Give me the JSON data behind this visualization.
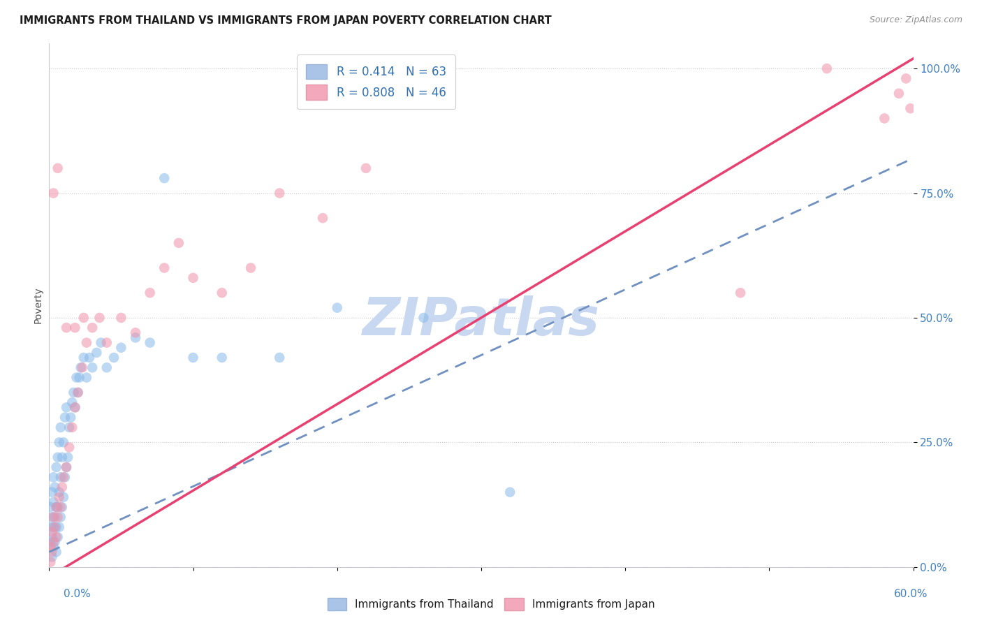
{
  "title": "IMMIGRANTS FROM THAILAND VS IMMIGRANTS FROM JAPAN POVERTY CORRELATION CHART",
  "source": "Source: ZipAtlas.com",
  "ylabel": "Poverty",
  "ytick_labels": [
    "0.0%",
    "25.0%",
    "50.0%",
    "75.0%",
    "100.0%"
  ],
  "ytick_values": [
    0.0,
    0.25,
    0.5,
    0.75,
    1.0
  ],
  "legend_label1": "Immigrants from Thailand",
  "legend_label2": "Immigrants from Japan",
  "thailand_color": "#88b8e8",
  "japan_color": "#f090a8",
  "watermark": "ZIPatlas",
  "watermark_color": "#c8d8f0",
  "xlim": [
    0.0,
    0.6
  ],
  "ylim": [
    0.0,
    1.05
  ],
  "trendline_japan_x0": 0.0,
  "trendline_japan_y0": -0.02,
  "trendline_japan_x1": 0.6,
  "trendline_japan_y1": 1.02,
  "trendline_thailand_x0": 0.0,
  "trendline_thailand_y0": 0.03,
  "trendline_thailand_x1": 0.6,
  "trendline_thailand_y1": 0.82,
  "thailand_x": [
    0.001,
    0.001,
    0.001,
    0.002,
    0.002,
    0.002,
    0.002,
    0.003,
    0.003,
    0.003,
    0.003,
    0.004,
    0.004,
    0.004,
    0.005,
    0.005,
    0.005,
    0.005,
    0.006,
    0.006,
    0.006,
    0.007,
    0.007,
    0.007,
    0.008,
    0.008,
    0.008,
    0.009,
    0.009,
    0.01,
    0.01,
    0.011,
    0.011,
    0.012,
    0.012,
    0.013,
    0.014,
    0.015,
    0.016,
    0.017,
    0.018,
    0.019,
    0.02,
    0.021,
    0.022,
    0.024,
    0.026,
    0.028,
    0.03,
    0.033,
    0.036,
    0.04,
    0.045,
    0.05,
    0.06,
    0.07,
    0.08,
    0.1,
    0.12,
    0.16,
    0.2,
    0.26,
    0.32
  ],
  "thailand_y": [
    0.05,
    0.08,
    0.12,
    0.02,
    0.06,
    0.1,
    0.15,
    0.04,
    0.08,
    0.13,
    0.18,
    0.05,
    0.1,
    0.16,
    0.03,
    0.08,
    0.12,
    0.2,
    0.06,
    0.12,
    0.22,
    0.08,
    0.15,
    0.25,
    0.1,
    0.18,
    0.28,
    0.12,
    0.22,
    0.14,
    0.25,
    0.18,
    0.3,
    0.2,
    0.32,
    0.22,
    0.28,
    0.3,
    0.33,
    0.35,
    0.32,
    0.38,
    0.35,
    0.38,
    0.4,
    0.42,
    0.38,
    0.42,
    0.4,
    0.43,
    0.45,
    0.4,
    0.42,
    0.44,
    0.46,
    0.45,
    0.78,
    0.42,
    0.42,
    0.42,
    0.52,
    0.5,
    0.15
  ],
  "japan_x": [
    0.001,
    0.001,
    0.002,
    0.002,
    0.003,
    0.003,
    0.004,
    0.005,
    0.005,
    0.006,
    0.007,
    0.008,
    0.009,
    0.01,
    0.012,
    0.014,
    0.016,
    0.018,
    0.02,
    0.023,
    0.026,
    0.03,
    0.035,
    0.04,
    0.05,
    0.06,
    0.07,
    0.08,
    0.09,
    0.1,
    0.12,
    0.14,
    0.16,
    0.19,
    0.22,
    0.48,
    0.54,
    0.58,
    0.59,
    0.595,
    0.598,
    0.003,
    0.006,
    0.012,
    0.018,
    0.024
  ],
  "japan_y": [
    0.01,
    0.04,
    0.03,
    0.07,
    0.05,
    0.1,
    0.08,
    0.06,
    0.12,
    0.1,
    0.14,
    0.12,
    0.16,
    0.18,
    0.2,
    0.24,
    0.28,
    0.32,
    0.35,
    0.4,
    0.45,
    0.48,
    0.5,
    0.45,
    0.5,
    0.47,
    0.55,
    0.6,
    0.65,
    0.58,
    0.55,
    0.6,
    0.75,
    0.7,
    0.8,
    0.55,
    1.0,
    0.9,
    0.95,
    0.98,
    0.92,
    0.75,
    0.8,
    0.48,
    0.48,
    0.5
  ]
}
